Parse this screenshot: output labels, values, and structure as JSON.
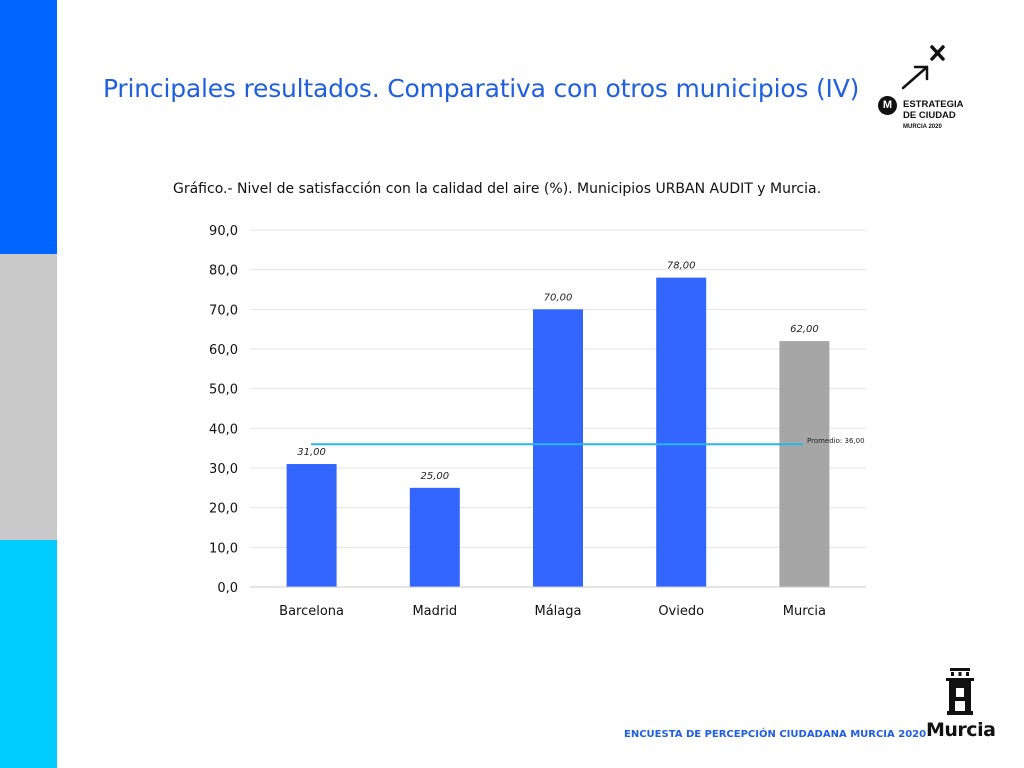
{
  "slide": {
    "title": "Principales resultados. Comparativa con otros municipios (IV)",
    "footer": "ENCUESTA DE PERCEPCIÓN CIUDADANA MURCIA 2020"
  },
  "logo": {
    "letter": "M",
    "line1": "ESTRATEGIA",
    "line2": "DE CIUDAD",
    "line3": "MURCIA 2020"
  },
  "city_logo": {
    "word": "Murcia"
  },
  "colors": {
    "accent_blue": "#1f5fe0",
    "bar_blue": "#3366ff",
    "bar_gray": "#a6a6a6",
    "average_line": "#29b6e8",
    "side_blue": "#0066ff",
    "side_gray": "#c9c9c9",
    "side_cyan": "#00ccff"
  },
  "chart_data": {
    "type": "bar",
    "title": "Gráfico.-  Nivel de satisfacción con la calidad del aire (%). Municipios URBAN AUDIT y Murcia.",
    "categories": [
      "Barcelona",
      "Madrid",
      "Málaga",
      "Oviedo",
      "Murcia"
    ],
    "values": [
      31,
      25,
      70,
      78,
      62
    ],
    "value_labels": [
      "31,00",
      "25,00",
      "70,00",
      "78,00",
      "62,00"
    ],
    "bar_colors": [
      "#3366ff",
      "#3366ff",
      "#3366ff",
      "#3366ff",
      "#a6a6a6"
    ],
    "ylim": [
      0,
      90
    ],
    "yticks": [
      0,
      10,
      20,
      30,
      40,
      50,
      60,
      70,
      80,
      90
    ],
    "ytick_labels": [
      "0,0",
      "10,0",
      "20,0",
      "30,0",
      "40,0",
      "50,0",
      "60,0",
      "70,0",
      "80,0",
      "90,0"
    ],
    "grid": true,
    "average": {
      "value": 36,
      "label": "Promedio: 36,00"
    }
  }
}
